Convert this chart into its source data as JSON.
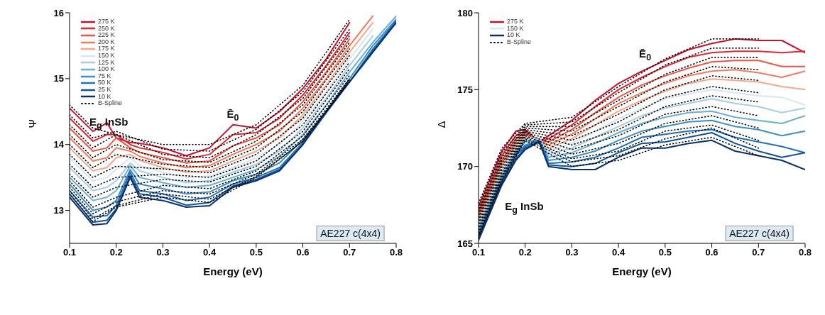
{
  "chart_data": [
    {
      "type": "line",
      "xlabel": "Energy (eV)",
      "ylabel": "Ψ",
      "xlim": [
        0.1,
        0.8
      ],
      "xticks": [
        0.1,
        0.2,
        0.3,
        0.4,
        0.5,
        0.6,
        0.7,
        0.8
      ],
      "ylim": [
        12.5,
        16
      ],
      "yticks": [
        13,
        14,
        15,
        16
      ],
      "legend": "top left",
      "marker": "none",
      "line_style": "solid",
      "x": [
        0.1,
        0.15,
        0.18,
        0.2,
        0.23,
        0.25,
        0.3,
        0.35,
        0.4,
        0.45,
        0.5,
        0.55,
        0.6,
        0.65,
        0.7,
        0.75,
        0.8
      ],
      "annotations": [
        "E$_{g}$ InSb",
        "Ē$_{0}$",
        "AE227 c(4x4)"
      ],
      "series": [
        {
          "name": "275 K",
          "color": "#c8102e",
          "values": [
            14.55,
            14.2,
            14.33,
            14.1,
            14.03,
            14.02,
            13.95,
            13.83,
            13.95,
            14.3,
            14.25,
            14.5,
            14.85,
            15.3,
            15.85,
            null,
            null
          ]
        },
        {
          "name": "250 K",
          "color": "#e3262f",
          "values": [
            14.4,
            14.05,
            14.15,
            14.15,
            14.0,
            13.95,
            13.88,
            13.78,
            13.85,
            14.15,
            14.18,
            14.4,
            14.75,
            15.2,
            15.7,
            null,
            null
          ]
        },
        {
          "name": "225 K",
          "color": "#ee5544",
          "values": [
            14.25,
            13.9,
            13.95,
            14.1,
            13.95,
            13.88,
            13.8,
            13.72,
            13.75,
            13.98,
            14.1,
            14.3,
            14.65,
            15.1,
            15.6,
            null,
            null
          ]
        },
        {
          "name": "200 K",
          "color": "#f37a5c",
          "values": [
            14.1,
            13.75,
            13.8,
            13.95,
            13.9,
            13.82,
            13.72,
            13.65,
            13.68,
            13.85,
            14.0,
            14.2,
            14.55,
            15.0,
            15.5,
            15.95,
            null
          ]
        },
        {
          "name": "175 K",
          "color": "#f7a789",
          "values": [
            13.95,
            13.6,
            13.65,
            13.8,
            13.85,
            13.76,
            13.65,
            13.58,
            13.6,
            13.75,
            13.9,
            14.1,
            14.45,
            14.9,
            15.4,
            15.85,
            null
          ]
        },
        {
          "name": "150 K",
          "color": "#d6e6f4",
          "values": [
            13.8,
            13.45,
            13.5,
            13.62,
            13.8,
            13.68,
            13.58,
            13.5,
            13.52,
            13.65,
            13.8,
            14.0,
            14.35,
            14.8,
            15.3,
            15.75,
            null
          ]
        },
        {
          "name": "125 K",
          "color": "#a6cde6",
          "values": [
            13.65,
            13.3,
            13.35,
            13.45,
            13.72,
            13.6,
            13.5,
            13.42,
            13.45,
            13.58,
            13.7,
            13.9,
            14.25,
            14.7,
            15.2,
            15.65,
            null
          ]
        },
        {
          "name": "100 K",
          "color": "#6aaed6",
          "values": [
            13.5,
            13.15,
            13.2,
            13.3,
            13.68,
            13.5,
            13.42,
            13.35,
            13.38,
            13.5,
            13.62,
            13.82,
            14.15,
            14.6,
            15.1,
            15.55,
            15.95
          ]
        },
        {
          "name": "75 K",
          "color": "#3f8fc5",
          "values": [
            13.4,
            13.0,
            13.05,
            13.15,
            13.62,
            13.4,
            13.33,
            13.25,
            13.28,
            13.45,
            13.55,
            13.72,
            14.08,
            14.5,
            15.0,
            15.5,
            15.9
          ]
        },
        {
          "name": "50 K",
          "color": "#2171b5",
          "values": [
            13.3,
            12.9,
            12.92,
            13.08,
            13.58,
            13.3,
            13.25,
            13.15,
            13.2,
            13.4,
            13.5,
            13.65,
            14.03,
            14.5,
            14.95,
            15.45,
            15.88
          ]
        },
        {
          "name": "25 K",
          "color": "#125396",
          "values": [
            13.25,
            12.82,
            12.85,
            13.02,
            13.53,
            13.25,
            13.2,
            13.08,
            13.12,
            13.37,
            13.47,
            13.62,
            14.0,
            14.48,
            14.95,
            15.42,
            15.85
          ]
        },
        {
          "name": "10 K",
          "color": "#08306b",
          "values": [
            13.2,
            12.78,
            12.8,
            13.0,
            13.5,
            13.2,
            13.15,
            13.05,
            13.07,
            13.35,
            13.45,
            13.6,
            14.0,
            14.5,
            14.95,
            15.4,
            15.85
          ]
        },
        {
          "name": "B-Spline",
          "color": "#000000",
          "line_style": "dotted",
          "x": [
            0.1,
            0.15,
            0.2,
            0.3,
            0.4,
            0.5,
            0.6,
            0.7
          ],
          "values": [
            14.6,
            14.25,
            14.15,
            14.0,
            14.0,
            14.3,
            14.9,
            15.9
          ]
        },
        {
          "color": "#000000",
          "line_style": "dotted",
          "x": [
            0.1,
            0.15,
            0.2,
            0.3,
            0.4,
            0.5,
            0.6,
            0.7
          ],
          "values": [
            14.45,
            14.1,
            14.2,
            13.93,
            13.9,
            14.23,
            14.8,
            15.75
          ]
        },
        {
          "color": "#000000",
          "line_style": "dotted",
          "x": [
            0.1,
            0.15,
            0.2,
            0.3,
            0.4,
            0.5,
            0.6,
            0.7
          ],
          "values": [
            14.3,
            13.95,
            14.15,
            13.85,
            13.8,
            14.15,
            14.7,
            15.65
          ]
        },
        {
          "color": "#000000",
          "line_style": "dotted",
          "x": [
            0.1,
            0.15,
            0.2,
            0.3,
            0.4,
            0.5,
            0.6,
            0.7
          ],
          "values": [
            14.15,
            13.8,
            14.0,
            13.77,
            13.73,
            14.05,
            14.6,
            15.55
          ]
        },
        {
          "color": "#000000",
          "line_style": "dotted",
          "x": [
            0.1,
            0.15,
            0.2,
            0.3,
            0.4,
            0.5,
            0.6,
            0.7
          ],
          "values": [
            14.0,
            13.65,
            13.85,
            13.7,
            13.65,
            13.95,
            14.5,
            15.45
          ]
        },
        {
          "color": "#000000",
          "line_style": "dotted",
          "x": [
            0.1,
            0.15,
            0.2,
            0.3,
            0.4,
            0.5,
            0.6,
            0.7
          ],
          "values": [
            13.85,
            13.5,
            13.67,
            13.63,
            13.57,
            13.85,
            14.4,
            15.35
          ]
        },
        {
          "color": "#000000",
          "line_style": "dotted",
          "x": [
            0.1,
            0.15,
            0.2,
            0.3,
            0.4,
            0.5,
            0.6,
            0.7
          ],
          "values": [
            13.7,
            13.35,
            13.5,
            13.55,
            13.5,
            13.75,
            14.3,
            15.25
          ]
        },
        {
          "color": "#000000",
          "line_style": "dotted",
          "x": [
            0.1,
            0.15,
            0.2,
            0.3,
            0.4,
            0.5,
            0.6,
            0.7
          ],
          "values": [
            13.55,
            13.2,
            13.35,
            13.47,
            13.43,
            13.67,
            14.2,
            15.15
          ]
        },
        {
          "color": "#000000",
          "line_style": "dotted",
          "x": [
            0.1,
            0.15,
            0.2,
            0.3,
            0.4,
            0.5,
            0.6,
            0.7
          ],
          "values": [
            13.45,
            13.05,
            13.2,
            13.38,
            13.33,
            13.6,
            14.13,
            15.05
          ]
        },
        {
          "color": "#000000",
          "line_style": "dotted",
          "x": [
            0.1,
            0.15,
            0.2,
            0.3,
            0.4,
            0.5,
            0.6,
            0.7
          ],
          "values": [
            13.35,
            12.95,
            13.13,
            13.3,
            13.25,
            13.55,
            14.08,
            15.0
          ]
        },
        {
          "color": "#000000",
          "line_style": "dotted",
          "x": [
            0.1,
            0.15,
            0.2,
            0.3,
            0.4,
            0.5,
            0.6,
            0.7
          ],
          "values": [
            13.3,
            12.87,
            13.07,
            13.25,
            13.17,
            13.52,
            14.05,
            14.98
          ]
        },
        {
          "color": "#000000",
          "line_style": "dotted",
          "x": [
            0.1,
            0.15,
            0.2,
            0.3,
            0.4,
            0.5,
            0.6,
            0.7
          ],
          "values": [
            13.25,
            12.83,
            13.05,
            13.2,
            13.12,
            13.5,
            14.05,
            14.96
          ]
        }
      ]
    },
    {
      "type": "line",
      "xlabel": "Energy (eV)",
      "ylabel": "Δ",
      "xlim": [
        0.1,
        0.8
      ],
      "xticks": [
        0.1,
        0.2,
        0.3,
        0.4,
        0.5,
        0.6,
        0.7,
        0.8
      ],
      "ylim": [
        165,
        180
      ],
      "yticks": [
        165,
        170,
        175,
        180
      ],
      "legend": "top left",
      "marker": "none",
      "line_style": "solid",
      "x": [
        0.1,
        0.15,
        0.18,
        0.2,
        0.23,
        0.25,
        0.3,
        0.35,
        0.4,
        0.45,
        0.5,
        0.55,
        0.6,
        0.65,
        0.7,
        0.75,
        0.8
      ],
      "annotations": [
        "E$_{g}$ InSb",
        "Ē$_{0}$",
        "AE227 c(4x4)"
      ],
      "series": [
        {
          "name": "275 K",
          "color": "#c8102e",
          "values": [
            167.4,
            171.0,
            172.3,
            172.4,
            171.6,
            172.0,
            173.0,
            174.3,
            175.4,
            176.2,
            176.9,
            177.6,
            178.0,
            178.3,
            178.2,
            178.2,
            177.4
          ]
        },
        {
          "color": "#e3262f",
          "values": [
            167.1,
            170.7,
            172.0,
            172.3,
            171.6,
            171.8,
            172.7,
            173.9,
            175.0,
            175.8,
            176.5,
            177.1,
            177.4,
            177.5,
            177.5,
            177.4,
            177.5
          ]
        },
        {
          "color": "#ee5544",
          "values": [
            166.9,
            170.4,
            171.8,
            172.2,
            171.7,
            171.6,
            172.4,
            173.5,
            174.5,
            175.3,
            175.9,
            176.4,
            176.8,
            176.9,
            176.9,
            176.5,
            176.5
          ]
        },
        {
          "color": "#f37a5c",
          "values": [
            166.7,
            170.2,
            171.6,
            172.1,
            171.7,
            171.4,
            172.1,
            173.1,
            174.1,
            174.8,
            175.4,
            175.9,
            176.2,
            176.3,
            176.1,
            175.8,
            176.2
          ]
        },
        {
          "color": "#f7a789",
          "values": [
            166.5,
            170.0,
            171.4,
            172.0,
            171.8,
            171.2,
            171.8,
            172.7,
            173.6,
            174.3,
            174.9,
            175.4,
            175.7,
            175.6,
            175.5,
            175.2,
            175.0
          ]
        },
        {
          "name": "150 K",
          "color": "#d6e6f4",
          "values": [
            166.3,
            169.8,
            171.2,
            171.9,
            171.8,
            171.0,
            171.5,
            172.3,
            173.1,
            173.8,
            174.4,
            174.7,
            175.0,
            174.8,
            174.6,
            174.5,
            174.0
          ]
        },
        {
          "color": "#a6cde6",
          "values": [
            166.1,
            169.6,
            171.0,
            171.8,
            171.8,
            170.8,
            171.2,
            171.9,
            172.6,
            173.3,
            173.8,
            174.1,
            174.4,
            174.1,
            173.9,
            173.5,
            173.8
          ]
        },
        {
          "color": "#6aaed6",
          "values": [
            165.9,
            169.4,
            170.9,
            171.6,
            171.7,
            170.6,
            170.9,
            171.5,
            172.2,
            172.8,
            173.2,
            173.5,
            173.6,
            173.2,
            173.0,
            172.8,
            173.3
          ]
        },
        {
          "color": "#3f8fc5",
          "values": [
            165.7,
            169.2,
            170.8,
            171.4,
            171.7,
            170.4,
            170.6,
            171.0,
            171.7,
            172.3,
            172.6,
            172.9,
            173.0,
            172.6,
            172.4,
            172.0,
            172.3
          ]
        },
        {
          "color": "#2171b5",
          "values": [
            165.5,
            169.1,
            170.7,
            171.3,
            171.7,
            170.2,
            170.3,
            170.6,
            171.2,
            171.9,
            172.1,
            172.3,
            172.4,
            171.9,
            171.6,
            171.3,
            170.9
          ]
        },
        {
          "color": "#125396",
          "values": [
            165.3,
            168.9,
            170.5,
            171.2,
            171.6,
            170.1,
            170.0,
            170.2,
            170.9,
            171.5,
            171.6,
            171.9,
            172.2,
            171.5,
            171.0,
            170.6,
            170.9
          ]
        },
        {
          "name": "10 K",
          "color": "#08306b",
          "values": [
            165.2,
            168.8,
            170.4,
            171.1,
            171.6,
            170.0,
            169.8,
            169.8,
            170.6,
            171.2,
            171.2,
            171.5,
            171.7,
            171.0,
            170.7,
            170.4,
            169.8
          ]
        },
        {
          "name": "B-Spline",
          "color": "#000000",
          "line_style": "dotted",
          "x": [
            0.1,
            0.15,
            0.2,
            0.3,
            0.4,
            0.5,
            0.6,
            0.7
          ],
          "values": [
            167.6,
            171.2,
            172.8,
            173.2,
            175.2,
            177.0,
            178.3,
            178.3
          ]
        },
        {
          "color": "#000000",
          "line_style": "dotted",
          "x": [
            0.1,
            0.15,
            0.2,
            0.3,
            0.4,
            0.5,
            0.6,
            0.7
          ],
          "values": [
            167.3,
            170.9,
            172.7,
            172.9,
            174.8,
            176.6,
            177.7,
            177.7
          ]
        },
        {
          "color": "#000000",
          "line_style": "dotted",
          "x": [
            0.1,
            0.15,
            0.2,
            0.3,
            0.4,
            0.5,
            0.6,
            0.7
          ],
          "values": [
            167.1,
            170.6,
            172.6,
            172.6,
            174.3,
            176.0,
            177.1,
            177.1
          ]
        },
        {
          "color": "#000000",
          "line_style": "dotted",
          "x": [
            0.1,
            0.15,
            0.2,
            0.3,
            0.4,
            0.5,
            0.6,
            0.7
          ],
          "values": [
            166.9,
            170.4,
            172.5,
            172.3,
            173.9,
            175.5,
            176.5,
            176.3
          ]
        },
        {
          "color": "#000000",
          "line_style": "dotted",
          "x": [
            0.1,
            0.15,
            0.2,
            0.3,
            0.4,
            0.5,
            0.6,
            0.7
          ],
          "values": [
            166.7,
            170.2,
            172.4,
            172.0,
            173.4,
            175.0,
            175.9,
            175.6
          ]
        },
        {
          "color": "#000000",
          "line_style": "dotted",
          "x": [
            0.1,
            0.15,
            0.2,
            0.3,
            0.4,
            0.5,
            0.6,
            0.7
          ],
          "values": [
            166.5,
            170.0,
            172.3,
            171.7,
            172.9,
            174.5,
            175.2,
            174.8
          ]
        },
        {
          "color": "#000000",
          "line_style": "dotted",
          "x": [
            0.1,
            0.15,
            0.2,
            0.3,
            0.4,
            0.5,
            0.6,
            0.7
          ],
          "values": [
            166.3,
            169.8,
            172.2,
            171.4,
            172.4,
            173.9,
            174.6,
            174.2
          ]
        },
        {
          "color": "#000000",
          "line_style": "dotted",
          "x": [
            0.1,
            0.15,
            0.2,
            0.3,
            0.4,
            0.5,
            0.6,
            0.7
          ],
          "values": [
            166.1,
            169.6,
            172.1,
            171.1,
            172.0,
            173.4,
            173.9,
            173.3
          ]
        },
        {
          "color": "#000000",
          "line_style": "dotted",
          "x": [
            0.1,
            0.15,
            0.2,
            0.3,
            0.4,
            0.5,
            0.6,
            0.7
          ],
          "values": [
            165.9,
            169.4,
            172.0,
            170.8,
            171.5,
            172.8,
            173.3,
            172.5
          ]
        },
        {
          "color": "#000000",
          "line_style": "dotted",
          "x": [
            0.1,
            0.15,
            0.2,
            0.3,
            0.4,
            0.5,
            0.6,
            0.7
          ],
          "values": [
            165.7,
            169.3,
            171.9,
            170.5,
            171.0,
            172.3,
            172.7,
            171.7
          ]
        },
        {
          "color": "#000000",
          "line_style": "dotted",
          "x": [
            0.1,
            0.15,
            0.2,
            0.3,
            0.4,
            0.5,
            0.6,
            0.7
          ],
          "values": [
            165.5,
            169.1,
            171.8,
            170.3,
            170.7,
            171.8,
            172.5,
            171.2
          ]
        },
        {
          "color": "#000000",
          "line_style": "dotted",
          "x": [
            0.1,
            0.15,
            0.2,
            0.3,
            0.4,
            0.5,
            0.6,
            0.7
          ],
          "values": [
            165.4,
            169.0,
            171.7,
            170.0,
            170.4,
            171.4,
            171.9,
            170.7
          ]
        }
      ]
    }
  ]
}
